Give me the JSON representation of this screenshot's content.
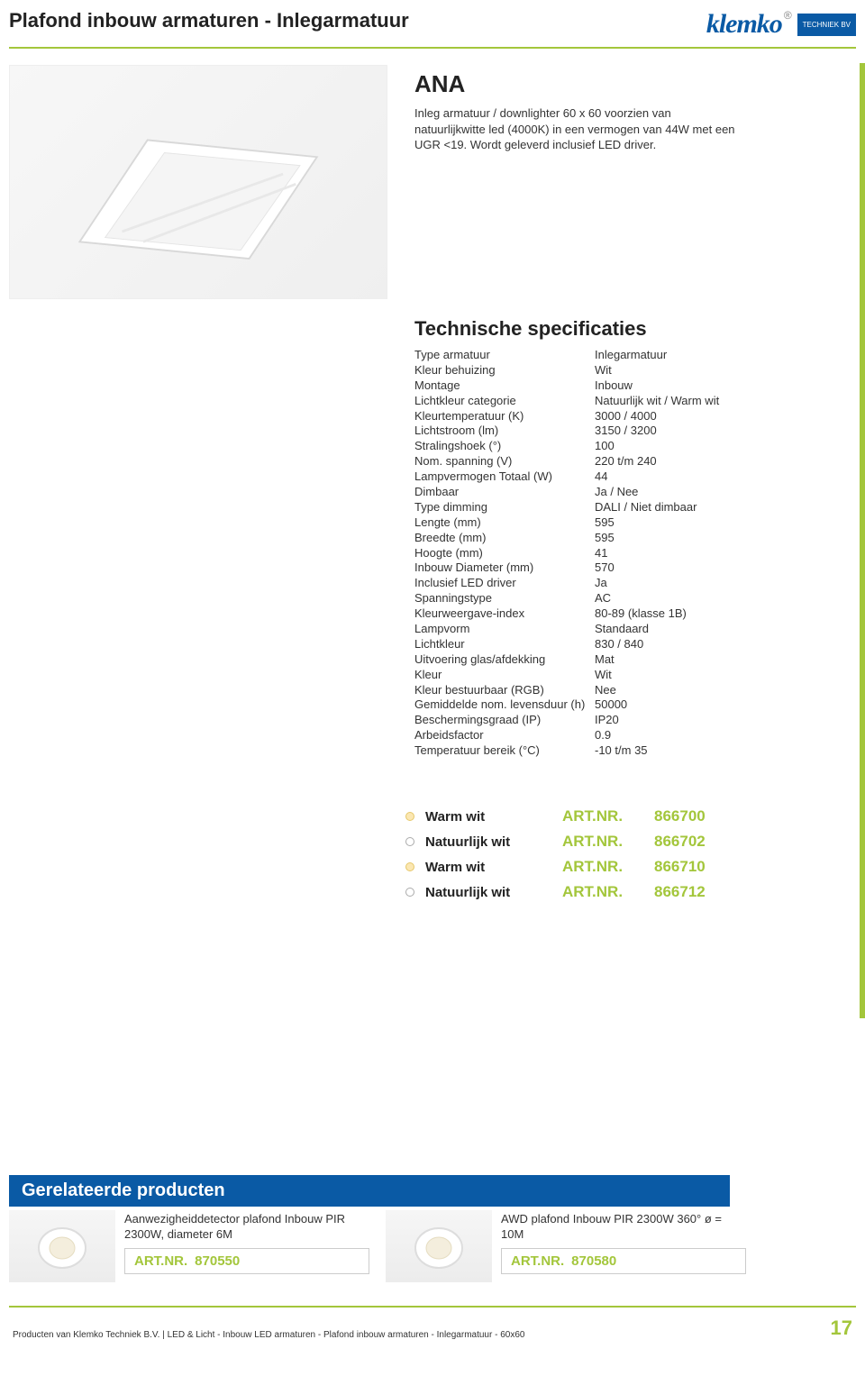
{
  "colors": {
    "accent": "#a3c63b",
    "brand_blue": "#0a5aa5"
  },
  "header": {
    "page_title": "Plafond inbouw armaturen - Inlegarmatuur",
    "logo_text": "klemko",
    "logo_badge": "TECHNIEK BV"
  },
  "product": {
    "name": "ANA",
    "description": "Inleg armatuur / downlighter 60 x 60 voorzien van natuurlijkwitte led (4000K) in een vermogen van 44W met een UGR <19. Wordt geleverd inclusief LED driver."
  },
  "specs": {
    "title": "Technische specificaties",
    "rows": [
      {
        "label": "Type armatuur",
        "value": "Inlegarmatuur"
      },
      {
        "label": "Kleur behuizing",
        "value": "Wit"
      },
      {
        "label": "Montage",
        "value": "Inbouw"
      },
      {
        "label": "Lichtkleur categorie",
        "value": "Natuurlijk wit / Warm wit"
      },
      {
        "label": "Kleurtemperatuur (K)",
        "value": "3000 / 4000"
      },
      {
        "label": "Lichtstroom (lm)",
        "value": "3150 / 3200"
      },
      {
        "label": "Stralingshoek (°)",
        "value": "100"
      },
      {
        "label": "Nom. spanning (V)",
        "value": "220 t/m 240"
      },
      {
        "label": "Lampvermogen Totaal (W)",
        "value": "44"
      },
      {
        "label": "Dimbaar",
        "value": "Ja / Nee"
      },
      {
        "label": "Type dimming",
        "value": "DALI / Niet dimbaar"
      },
      {
        "label": "Lengte (mm)",
        "value": "595"
      },
      {
        "label": "Breedte (mm)",
        "value": "595"
      },
      {
        "label": "Hoogte (mm)",
        "value": "41"
      },
      {
        "label": "Inbouw Diameter (mm)",
        "value": "570"
      },
      {
        "label": "Inclusief LED driver",
        "value": "Ja"
      },
      {
        "label": "Spanningstype",
        "value": "AC"
      },
      {
        "label": "Kleurweergave-index",
        "value": "80-89 (klasse 1B)"
      },
      {
        "label": "Lampvorm",
        "value": "Standaard"
      },
      {
        "label": "Lichtkleur",
        "value": "830 / 840"
      },
      {
        "label": "Uitvoering glas/afdekking",
        "value": "Mat"
      },
      {
        "label": "Kleur",
        "value": "Wit"
      },
      {
        "label": "Kleur bestuurbaar (RGB)",
        "value": "Nee"
      },
      {
        "label": "Gemiddelde nom. levensduur (h)",
        "value": "50000"
      },
      {
        "label": "Beschermingsgraad (IP)",
        "value": "IP20"
      },
      {
        "label": "Arbeidsfactor",
        "value": "0.9"
      },
      {
        "label": "Temperatuur bereik (°C)",
        "value": "-10 t/m 35"
      }
    ]
  },
  "variants": {
    "artnr_label": "ART.NR.",
    "items": [
      {
        "warm": true,
        "name": "Warm wit",
        "artnr": "866700"
      },
      {
        "warm": false,
        "name": "Natuurlijk wit",
        "artnr": "866702"
      },
      {
        "warm": true,
        "name": "Warm wit",
        "artnr": "866710"
      },
      {
        "warm": false,
        "name": "Natuurlijk wit",
        "artnr": "866712"
      }
    ]
  },
  "related": {
    "title": "Gerelateerde producten",
    "artnr_label": "ART.NR.",
    "items": [
      {
        "title": "Aanwezigheiddetector plafond Inbouw PIR 2300W, diameter 6M",
        "artnr": "870550"
      },
      {
        "title": "AWD plafond Inbouw PIR 2300W 360° ø = 10M",
        "artnr": "870580"
      }
    ]
  },
  "footer": {
    "breadcrumb": "Producten van Klemko Techniek B.V. | LED & Licht - Inbouw LED armaturen - Plafond inbouw armaturen - Inlegarmatuur - 60x60",
    "page_number": "17"
  }
}
